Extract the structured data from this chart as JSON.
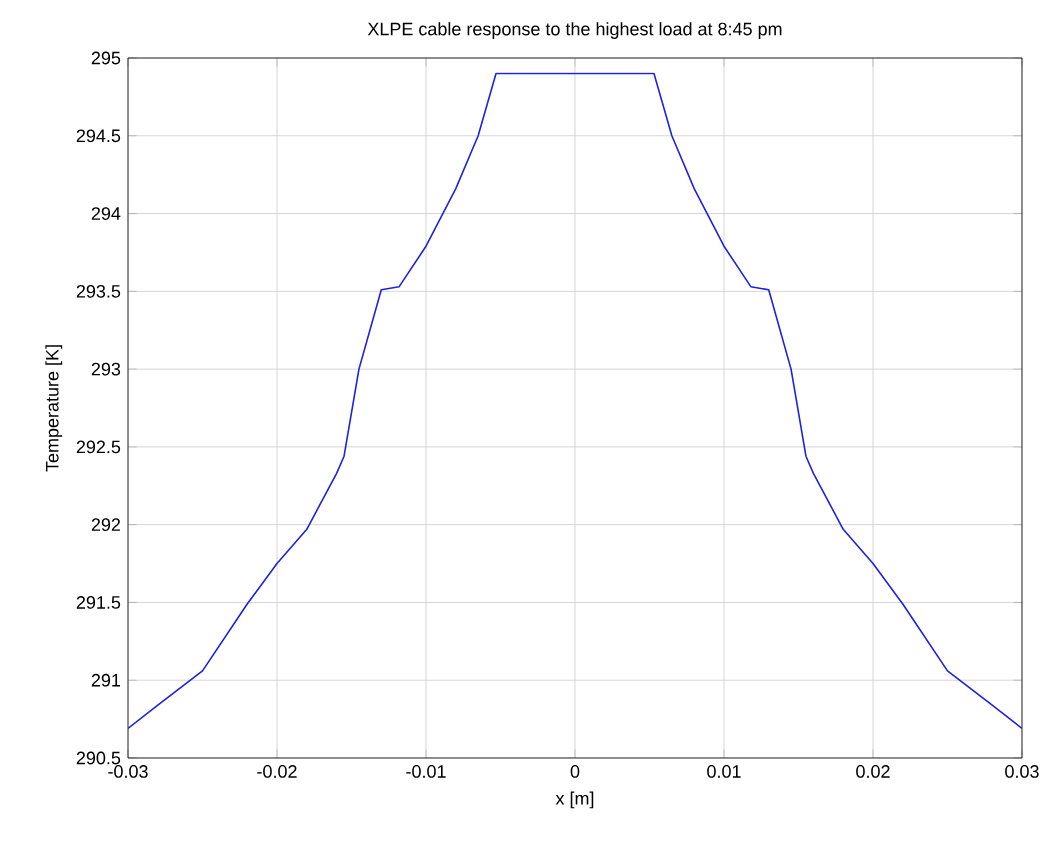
{
  "chart_data": {
    "type": "line",
    "title": "XLPE cable response to the highest load  at 8:45 pm",
    "xlabel": "x [m]",
    "ylabel": "Temperature [K]",
    "x": [
      -0.03,
      -0.028,
      -0.025,
      -0.022,
      -0.02,
      -0.018,
      -0.016,
      -0.0155,
      -0.0145,
      -0.013,
      -0.0118,
      -0.01,
      -0.008,
      -0.0065,
      -0.0053,
      0.0053,
      0.0065,
      0.008,
      0.01,
      0.0118,
      0.013,
      0.0145,
      0.0155,
      0.016,
      0.018,
      0.02,
      0.022,
      0.025,
      0.028,
      0.03
    ],
    "series": [
      {
        "color": "#2020e0",
        "values": [
          290.69,
          290.84,
          291.06,
          291.49,
          291.75,
          291.97,
          292.33,
          292.44,
          293.0,
          293.51,
          293.53,
          293.79,
          294.16,
          294.5,
          294.9,
          294.9,
          294.5,
          294.16,
          293.79,
          293.53,
          293.51,
          293.0,
          292.44,
          292.33,
          291.97,
          291.75,
          291.49,
          291.06,
          290.84,
          290.69
        ]
      }
    ],
    "xlim": [
      -0.03,
      0.03
    ],
    "ylim": [
      290.5,
      295
    ],
    "xticks": [
      -0.03,
      -0.02,
      -0.01,
      0,
      0.01,
      0.02,
      0.03
    ],
    "yticks": [
      290.5,
      291,
      291.5,
      292,
      292.5,
      293,
      293.5,
      294,
      294.5,
      295
    ],
    "grid": true,
    "line_style": "solid"
  }
}
